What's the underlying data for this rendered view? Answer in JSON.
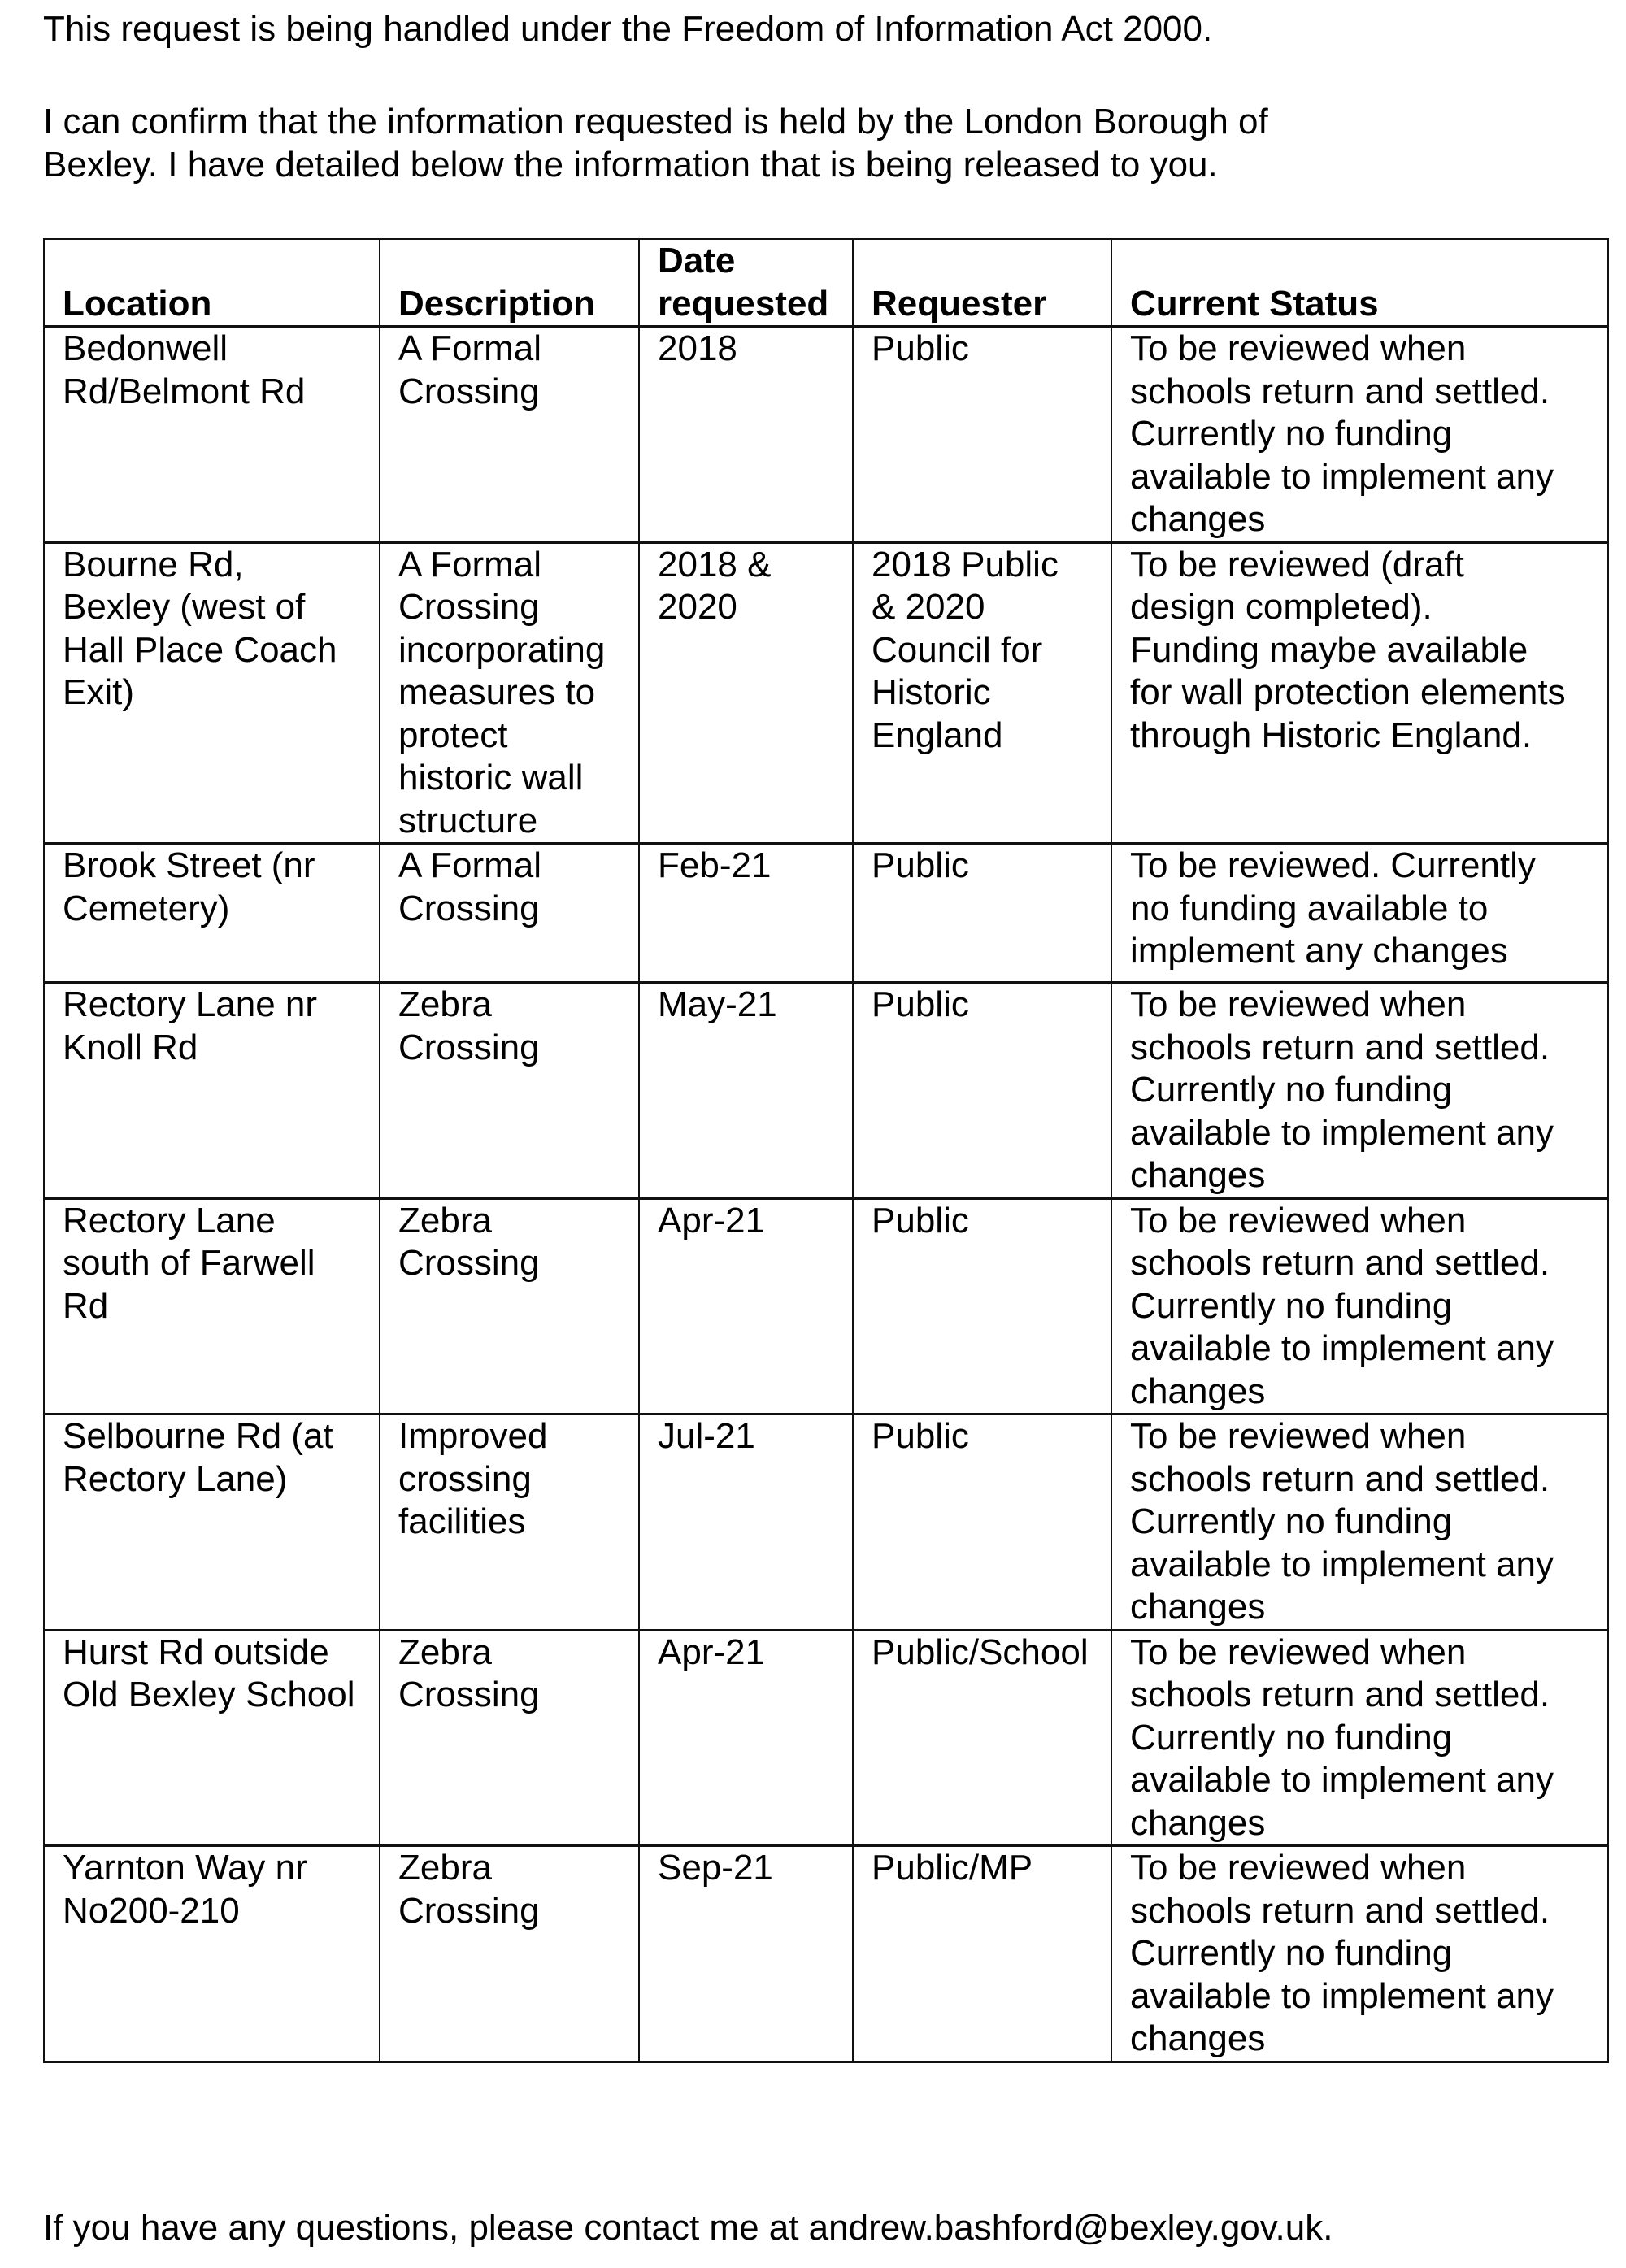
{
  "intro": {
    "line1": "This request is being handled under the Freedom of Information Act 2000.",
    "para2": "I can confirm that the information requested is held by the London Borough of\nBexley. I have detailed below the information that is being released to you."
  },
  "table": {
    "headers": [
      "Location",
      "Description",
      "Date\nrequested",
      "Requester",
      "Current Status"
    ],
    "rows": [
      [
        "Bedonwell\nRd/Belmont Rd",
        "A Formal\nCrossing",
        "2018",
        "Public",
        "To be reviewed when\nschools return and settled.\nCurrently no funding\navailable to implement any\nchanges"
      ],
      [
        "Bourne Rd,\nBexley (west of\nHall Place Coach\nExit)",
        "A Formal\nCrossing\nincorporating\nmeasures to\nprotect\nhistoric wall\nstructure",
        "2018 &\n2020",
        "2018 Public\n& 2020\nCouncil for\nHistoric\nEngland",
        "To be reviewed (draft\ndesign completed).\nFunding maybe available\nfor wall protection elements\nthrough Historic England."
      ],
      [
        "Brook Street (nr\nCemetery)",
        "A Formal\nCrossing",
        "Feb-21",
        "Public",
        "To be reviewed.  Currently\nno funding available to\nimplement any changes"
      ],
      [
        "Rectory Lane nr\nKnoll Rd",
        "Zebra\nCrossing",
        "May-21",
        "Public",
        "To be reviewed when\nschools return and settled.\nCurrently no funding\navailable to implement any\nchanges"
      ],
      [
        "Rectory Lane\nsouth of Farwell\nRd",
        "Zebra\nCrossing",
        "Apr-21",
        "Public",
        "To be reviewed when\nschools return and settled.\nCurrently no funding\navailable to implement any\nchanges"
      ],
      [
        "Selbourne Rd (at\nRectory Lane)",
        "Improved\ncrossing\nfacilities",
        "Jul-21",
        "Public",
        "To be reviewed when\nschools return and settled.\nCurrently no funding\navailable to implement any\nchanges"
      ],
      [
        "Hurst Rd outside\nOld Bexley School",
        "Zebra\nCrossing",
        "Apr-21",
        "Public/School",
        "To be reviewed when\nschools return and settled.\nCurrently no funding\navailable to implement any\nchanges"
      ],
      [
        "Yarnton Way nr\nNo200-210",
        "Zebra\nCrossing",
        "Sep-21",
        "Public/MP",
        "To be reviewed when\nschools return and settled.\nCurrently no funding\navailable to implement any\nchanges"
      ]
    ]
  },
  "footer": "If you have any questions, please contact me at andrew.bashford@bexley.gov.uk."
}
